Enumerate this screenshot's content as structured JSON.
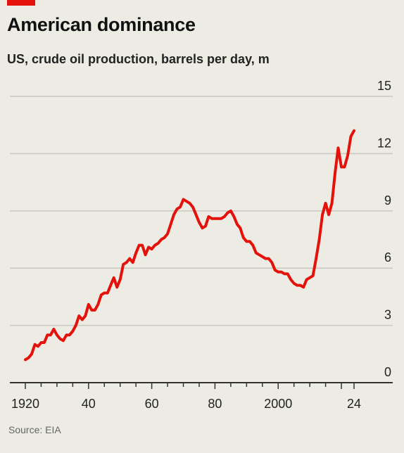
{
  "header": {
    "title": "American dominance",
    "subtitle": "US, crude oil production, barrels per day, m"
  },
  "footer": {
    "source": "Source: EIA"
  },
  "colors": {
    "line": "#e3120b",
    "grid": "#c9c8c0",
    "axis": "#333333",
    "background": "#ecebe4",
    "tag": "#e3120b"
  },
  "chart_data": {
    "type": "line",
    "title": "American dominance",
    "subtitle": "US, crude oil production, barrels per day, m",
    "xlabel": "",
    "ylabel": "",
    "xlim": [
      1920,
      2024
    ],
    "ylim": [
      0,
      15
    ],
    "x_ticks": [
      1920,
      1940,
      1960,
      1980,
      2000,
      2024
    ],
    "x_tick_labels": [
      "1920",
      "40",
      "60",
      "80",
      "2000",
      "24"
    ],
    "y_ticks": [
      0,
      3,
      6,
      9,
      12,
      15
    ],
    "y_tick_labels": [
      "0",
      "3",
      "6",
      "9",
      "12",
      "15"
    ],
    "grid": "horizontal",
    "legend": "none",
    "series": [
      {
        "points": [
          [
            1920,
            1.2
          ],
          [
            1921,
            1.3
          ],
          [
            1922,
            1.5
          ],
          [
            1923,
            2.0
          ],
          [
            1924,
            1.9
          ],
          [
            1925,
            2.1
          ],
          [
            1926,
            2.1
          ],
          [
            1927,
            2.5
          ],
          [
            1928,
            2.5
          ],
          [
            1929,
            2.8
          ],
          [
            1930,
            2.5
          ],
          [
            1931,
            2.3
          ],
          [
            1932,
            2.2
          ],
          [
            1933,
            2.5
          ],
          [
            1934,
            2.5
          ],
          [
            1935,
            2.7
          ],
          [
            1936,
            3.0
          ],
          [
            1937,
            3.5
          ],
          [
            1938,
            3.3
          ],
          [
            1939,
            3.5
          ],
          [
            1940,
            4.1
          ],
          [
            1941,
            3.8
          ],
          [
            1942,
            3.8
          ],
          [
            1943,
            4.1
          ],
          [
            1944,
            4.6
          ],
          [
            1945,
            4.7
          ],
          [
            1946,
            4.7
          ],
          [
            1947,
            5.1
          ],
          [
            1948,
            5.5
          ],
          [
            1949,
            5.0
          ],
          [
            1950,
            5.4
          ],
          [
            1951,
            6.2
          ],
          [
            1952,
            6.3
          ],
          [
            1953,
            6.5
          ],
          [
            1954,
            6.3
          ],
          [
            1955,
            6.8
          ],
          [
            1956,
            7.2
          ],
          [
            1957,
            7.2
          ],
          [
            1958,
            6.7
          ],
          [
            1959,
            7.1
          ],
          [
            1960,
            7.0
          ],
          [
            1961,
            7.2
          ],
          [
            1962,
            7.3
          ],
          [
            1963,
            7.5
          ],
          [
            1964,
            7.6
          ],
          [
            1965,
            7.8
          ],
          [
            1966,
            8.3
          ],
          [
            1967,
            8.8
          ],
          [
            1968,
            9.1
          ],
          [
            1969,
            9.2
          ],
          [
            1970,
            9.6
          ],
          [
            1971,
            9.5
          ],
          [
            1972,
            9.4
          ],
          [
            1973,
            9.2
          ],
          [
            1974,
            8.8
          ],
          [
            1975,
            8.4
          ],
          [
            1976,
            8.1
          ],
          [
            1977,
            8.2
          ],
          [
            1978,
            8.7
          ],
          [
            1979,
            8.6
          ],
          [
            1980,
            8.6
          ],
          [
            1981,
            8.6
          ],
          [
            1982,
            8.6
          ],
          [
            1983,
            8.7
          ],
          [
            1984,
            8.9
          ],
          [
            1985,
            9.0
          ],
          [
            1986,
            8.7
          ],
          [
            1987,
            8.3
          ],
          [
            1988,
            8.1
          ],
          [
            1989,
            7.6
          ],
          [
            1990,
            7.4
          ],
          [
            1991,
            7.4
          ],
          [
            1992,
            7.2
          ],
          [
            1993,
            6.8
          ],
          [
            1994,
            6.7
          ],
          [
            1995,
            6.6
          ],
          [
            1996,
            6.5
          ],
          [
            1997,
            6.5
          ],
          [
            1998,
            6.3
          ],
          [
            1999,
            5.9
          ],
          [
            2000,
            5.8
          ],
          [
            2001,
            5.8
          ],
          [
            2002,
            5.7
          ],
          [
            2003,
            5.7
          ],
          [
            2004,
            5.4
          ],
          [
            2005,
            5.2
          ],
          [
            2006,
            5.1
          ],
          [
            2007,
            5.1
          ],
          [
            2008,
            5.0
          ],
          [
            2009,
            5.4
          ],
          [
            2010,
            5.5
          ],
          [
            2011,
            5.6
          ],
          [
            2012,
            6.5
          ],
          [
            2013,
            7.5
          ],
          [
            2014,
            8.8
          ],
          [
            2015,
            9.4
          ],
          [
            2016,
            8.8
          ],
          [
            2017,
            9.4
          ],
          [
            2018,
            11.0
          ],
          [
            2019,
            12.3
          ],
          [
            2020,
            11.3
          ],
          [
            2021,
            11.3
          ],
          [
            2022,
            11.9
          ],
          [
            2023,
            12.9
          ],
          [
            2024,
            13.2
          ]
        ]
      }
    ]
  }
}
